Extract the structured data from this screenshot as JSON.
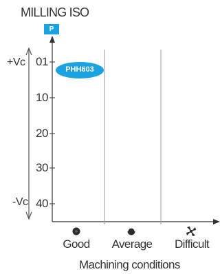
{
  "title": "MILLING ISO",
  "iso_group_badge": "P",
  "speed_axis": {
    "top_label": "+Vc",
    "bottom_label": "-Vc"
  },
  "y_ticks": [
    "01",
    "10",
    "20",
    "30",
    "40"
  ],
  "x_categories": [
    "Good",
    "Average",
    "Difficult"
  ],
  "x_axis_label": "Machining conditions",
  "grade": {
    "label": "PHH603",
    "position_value": "01",
    "condition": "Good"
  },
  "colors": {
    "badge": "#1aa3e0",
    "grade_ellipse": "#1aa3e0",
    "axis": "#333333",
    "divider": "#9a9a9a"
  },
  "icons": [
    "good-conditions-icon",
    "average-conditions-icon",
    "difficult-conditions-icon"
  ]
}
